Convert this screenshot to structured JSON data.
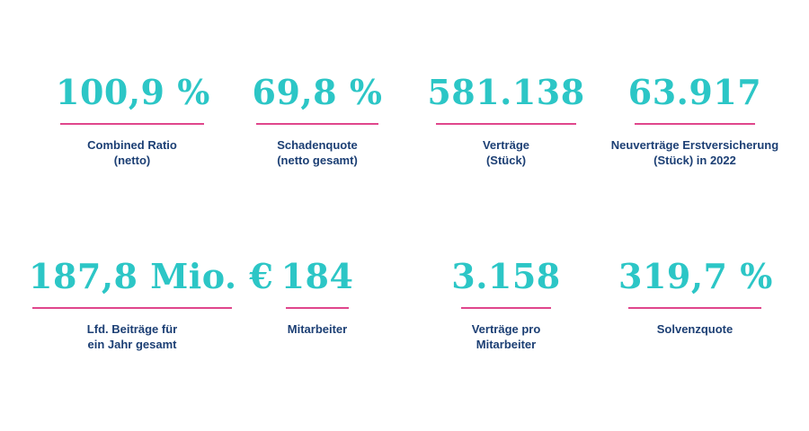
{
  "colors": {
    "value": "#2cc6c6",
    "rule": "#e0468c",
    "label": "#1c3f74"
  },
  "kpis": [
    {
      "value": "100,9 %",
      "label_lines": [
        "Combined Ratio",
        "(netto)"
      ]
    },
    {
      "value": "69,8 %",
      "label_lines": [
        "Schadenquote",
        "(netto gesamt)"
      ]
    },
    {
      "value": "581.138",
      "label_lines": [
        "Verträge",
        "(Stück)"
      ]
    },
    {
      "value": "63.917",
      "label_lines": [
        "Neuverträge Erstversicherung",
        "(Stück) in 2022"
      ]
    },
    {
      "value": "187,8 Mio. €",
      "label_lines": [
        "Lfd. Beiträge für",
        "ein Jahr gesamt"
      ]
    },
    {
      "value": "184",
      "label_lines": [
        "Mitarbeiter"
      ]
    },
    {
      "value": "3.158",
      "label_lines": [
        "Verträge pro",
        "Mitarbeiter"
      ]
    },
    {
      "value": "319,7 %",
      "label_lines": [
        "Solvenzquote"
      ]
    }
  ]
}
